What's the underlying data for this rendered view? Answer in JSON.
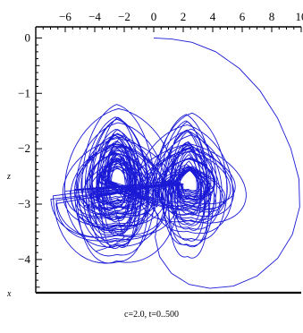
{
  "chart_data": {
    "type": "line",
    "caption": "c=2.0, t=0..500",
    "xlabel": "x",
    "ylabel": "z",
    "xlim": [
      -8,
      10
    ],
    "ylim": [
      -4.6,
      0.2
    ],
    "x_ticks": [
      -6,
      -4,
      -2,
      0,
      2,
      4,
      6,
      8,
      10
    ],
    "y_ticks": [
      0,
      -1,
      -2,
      -3,
      -4
    ],
    "series": [
      {
        "color": "#1a1ad6",
        "description_points": {
          "start": [
            0,
            0
          ],
          "left_lobe_center": [
            -2.5,
            -2.5
          ],
          "right_lobe_center": [
            2.4,
            -2.5
          ],
          "outer_loop_right_extreme": [
            9.9,
            -2.4
          ],
          "outer_loop_bottom": [
            3.0,
            -4.5
          ]
        }
      }
    ]
  }
}
